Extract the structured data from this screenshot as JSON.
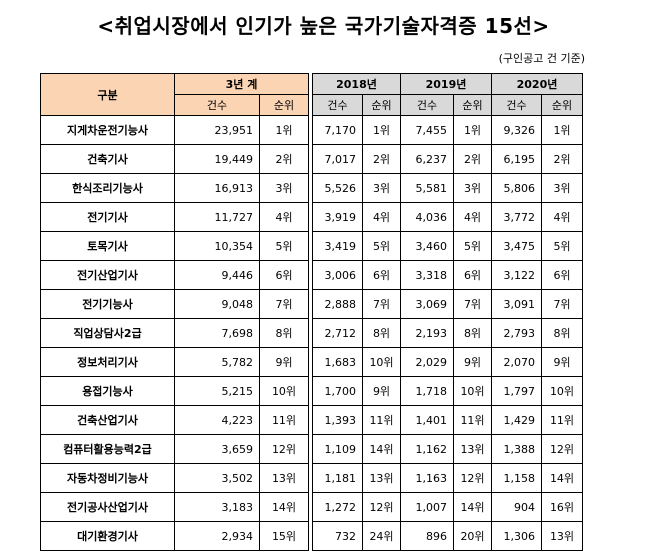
{
  "title": "<취업시장에서 인기가 높은 국가기술자격증 15선>",
  "note": "(구인공고 건 기준)",
  "left_header": {
    "category": "구분",
    "group": "3년 계",
    "count": "건수",
    "rank": "순위"
  },
  "right_header": {
    "years": [
      "2018년",
      "2019년",
      "2020년"
    ],
    "count": "건수",
    "rank": "순위"
  },
  "rows": [
    {
      "name": "지게차운전기능사",
      "total": "23,951",
      "total_rank": "1위",
      "y2018": "7,170",
      "r2018": "1위",
      "y2019": "7,455",
      "r2019": "1위",
      "y2020": "9,326",
      "r2020": "1위"
    },
    {
      "name": "건축기사",
      "total": "19,449",
      "total_rank": "2위",
      "y2018": "7,017",
      "r2018": "2위",
      "y2019": "6,237",
      "r2019": "2위",
      "y2020": "6,195",
      "r2020": "2위"
    },
    {
      "name": "한식조리기능사",
      "total": "16,913",
      "total_rank": "3위",
      "y2018": "5,526",
      "r2018": "3위",
      "y2019": "5,581",
      "r2019": "3위",
      "y2020": "5,806",
      "r2020": "3위"
    },
    {
      "name": "전기기사",
      "total": "11,727",
      "total_rank": "4위",
      "y2018": "3,919",
      "r2018": "4위",
      "y2019": "4,036",
      "r2019": "4위",
      "y2020": "3,772",
      "r2020": "4위"
    },
    {
      "name": "토목기사",
      "total": "10,354",
      "total_rank": "5위",
      "y2018": "3,419",
      "r2018": "5위",
      "y2019": "3,460",
      "r2019": "5위",
      "y2020": "3,475",
      "r2020": "5위"
    },
    {
      "name": "전기산업기사",
      "total": "9,446",
      "total_rank": "6위",
      "y2018": "3,006",
      "r2018": "6위",
      "y2019": "3,318",
      "r2019": "6위",
      "y2020": "3,122",
      "r2020": "6위"
    },
    {
      "name": "전기기능사",
      "total": "9,048",
      "total_rank": "7위",
      "y2018": "2,888",
      "r2018": "7위",
      "y2019": "3,069",
      "r2019": "7위",
      "y2020": "3,091",
      "r2020": "7위"
    },
    {
      "name": "직업상담사2급",
      "total": "7,698",
      "total_rank": "8위",
      "y2018": "2,712",
      "r2018": "8위",
      "y2019": "2,193",
      "r2019": "8위",
      "y2020": "2,793",
      "r2020": "8위"
    },
    {
      "name": "정보처리기사",
      "total": "5,782",
      "total_rank": "9위",
      "y2018": "1,683",
      "r2018": "10위",
      "y2019": "2,029",
      "r2019": "9위",
      "y2020": "2,070",
      "r2020": "9위"
    },
    {
      "name": "용접기능사",
      "total": "5,215",
      "total_rank": "10위",
      "y2018": "1,700",
      "r2018": "9위",
      "y2019": "1,718",
      "r2019": "10위",
      "y2020": "1,797",
      "r2020": "10위"
    },
    {
      "name": "건축산업기사",
      "total": "4,223",
      "total_rank": "11위",
      "y2018": "1,393",
      "r2018": "11위",
      "y2019": "1,401",
      "r2019": "11위",
      "y2020": "1,429",
      "r2020": "11위"
    },
    {
      "name": "컴퓨터활용능력2급",
      "total": "3,659",
      "total_rank": "12위",
      "y2018": "1,109",
      "r2018": "14위",
      "y2019": "1,162",
      "r2019": "13위",
      "y2020": "1,388",
      "r2020": "12위"
    },
    {
      "name": "자동차정비기능사",
      "total": "3,502",
      "total_rank": "13위",
      "y2018": "1,181",
      "r2018": "13위",
      "y2019": "1,163",
      "r2019": "12위",
      "y2020": "1,158",
      "r2020": "14위"
    },
    {
      "name": "전기공사산업기사",
      "total": "3,183",
      "total_rank": "14위",
      "y2018": "1,272",
      "r2018": "12위",
      "y2019": "1,007",
      "r2019": "14위",
      "y2020": "904",
      "r2020": "16위"
    },
    {
      "name": "대기환경기사",
      "total": "2,934",
      "total_rank": "15위",
      "y2018": "732",
      "r2018": "24위",
      "y2019": "896",
      "r2019": "20위",
      "y2020": "1,306",
      "r2020": "13위"
    }
  ],
  "colors": {
    "header_peach": "#fbd4b4",
    "header_gray": "#d9d9d9"
  }
}
